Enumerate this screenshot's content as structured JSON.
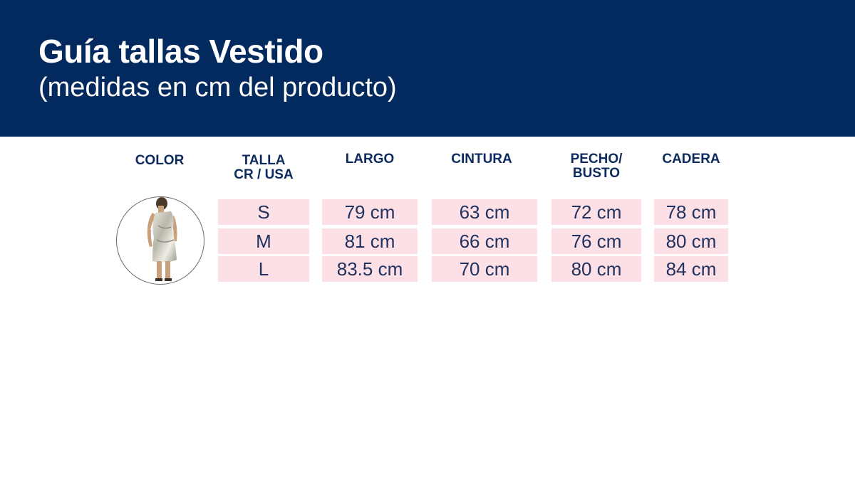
{
  "header": {
    "title": "Guía tallas Vestido",
    "subtitle": "(medidas en cm del producto)"
  },
  "table": {
    "headers": {
      "color": "COLOR",
      "talla_line1": "TALLA",
      "talla_line2": "CR / USA",
      "largo": "LARGO",
      "cintura": "CINTURA",
      "pecho_line1": "PECHO/",
      "pecho_line2": "BUSTO",
      "cadera": "CADERA"
    },
    "rows": [
      {
        "talla": "S",
        "largo": "79 cm",
        "cintura": "63 cm",
        "pecho": "72 cm",
        "cadera": "78 cm"
      },
      {
        "talla": "M",
        "largo": "81 cm",
        "cintura": "66 cm",
        "pecho": "76 cm",
        "cadera": "80 cm"
      },
      {
        "talla": "L",
        "largo": "83.5 cm",
        "cintura": "70 cm",
        "pecho": "80 cm",
        "cadera": "84 cm"
      }
    ]
  },
  "colors": {
    "header_bg": "#022a5e",
    "cell_bg": "#fde0e6",
    "heading_text": "#0d2a5e",
    "cell_text": "#1f3260"
  },
  "product_image": "silver-metallic-one-shoulder-dress-photo"
}
